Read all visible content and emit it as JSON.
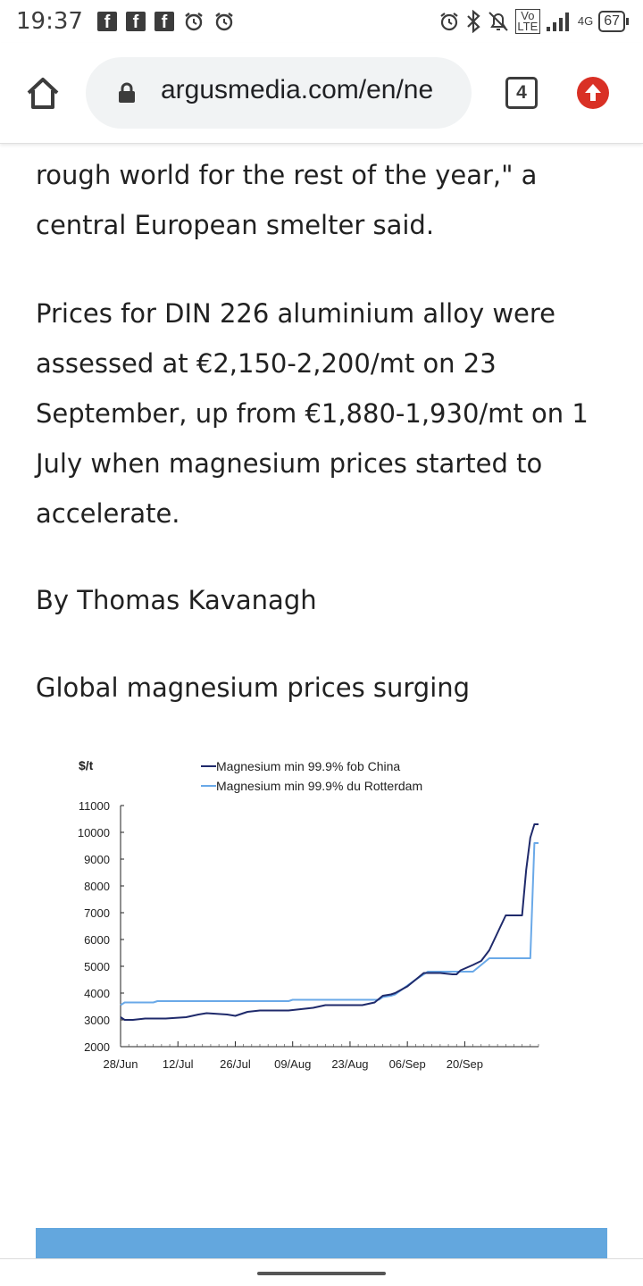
{
  "status_bar": {
    "time": "19:37",
    "battery": "67",
    "network": "4G",
    "volte": "Vo LTE"
  },
  "browser": {
    "url": "argusmedia.com/en/ne",
    "tab_count": "4"
  },
  "article": {
    "para1": "rough world for the rest of the year,\" a central European smelter said.",
    "para2": "Prices for DIN 226 aluminium alloy were assessed at €2,150-2,200/mt on 23 September, up from €1,880-1,930/mt on 1 July when magnesium prices started to accelerate.",
    "byline": "By Thomas Kavanagh",
    "chart_heading": "Global magnesium prices surging"
  },
  "colors": {
    "series_china": "#1f2a6b",
    "series_rotterdam": "#6aa9e8",
    "banner": "#63a7de"
  },
  "chart_data": {
    "type": "line",
    "ylabel": "$/t",
    "ylim": [
      2000,
      11000
    ],
    "yticks": [
      "11000",
      "10000",
      "9000",
      "8000",
      "7000",
      "6000",
      "5000",
      "4000",
      "3000",
      "2000"
    ],
    "xticks": [
      "28/Jun",
      "12/Jul",
      "26/Jul",
      "09/Aug",
      "23/Aug",
      "06/Sep",
      "20/Sep"
    ],
    "legend_position": "top",
    "grid": false,
    "series": [
      {
        "name": "Magnesium min 99.9% fob China",
        "points": [
          [
            0,
            3100
          ],
          [
            1,
            3000
          ],
          [
            3,
            3000
          ],
          [
            6,
            3050
          ],
          [
            11,
            3050
          ],
          [
            16,
            3100
          ],
          [
            19,
            3200
          ],
          [
            21,
            3250
          ],
          [
            26,
            3200
          ],
          [
            28,
            3150
          ],
          [
            31,
            3300
          ],
          [
            34,
            3350
          ],
          [
            41,
            3350
          ],
          [
            44,
            3400
          ],
          [
            47,
            3450
          ],
          [
            50,
            3550
          ],
          [
            56,
            3550
          ],
          [
            59,
            3550
          ],
          [
            62,
            3650
          ],
          [
            64,
            3900
          ],
          [
            66,
            3950
          ],
          [
            67,
            4000
          ],
          [
            70,
            4250
          ],
          [
            72,
            4500
          ],
          [
            74,
            4750
          ],
          [
            78,
            4750
          ],
          [
            81,
            4700
          ],
          [
            82,
            4700
          ],
          [
            83,
            4850
          ],
          [
            86,
            5050
          ],
          [
            88,
            5200
          ],
          [
            90,
            5600
          ],
          [
            94,
            6900
          ],
          [
            98,
            6900
          ],
          [
            99,
            8600
          ],
          [
            100,
            9800
          ],
          [
            101,
            10300
          ],
          [
            102,
            10300
          ]
        ]
      },
      {
        "name": "Magnesium min 99.9% du Rotterdam",
        "points": [
          [
            0,
            3550
          ],
          [
            1,
            3650
          ],
          [
            3,
            3650
          ],
          [
            8,
            3650
          ],
          [
            9,
            3700
          ],
          [
            35,
            3700
          ],
          [
            41,
            3700
          ],
          [
            42,
            3750
          ],
          [
            63,
            3750
          ],
          [
            64,
            3850
          ],
          [
            66,
            3900
          ],
          [
            67,
            3950
          ],
          [
            72,
            4500
          ],
          [
            73,
            4600
          ],
          [
            75,
            4800
          ],
          [
            79,
            4800
          ],
          [
            81,
            4800
          ],
          [
            82,
            4800
          ],
          [
            84,
            4800
          ],
          [
            86,
            4800
          ],
          [
            88,
            5050
          ],
          [
            90,
            5300
          ],
          [
            94,
            5300
          ],
          [
            100,
            5300
          ],
          [
            101,
            9600
          ],
          [
            102,
            9600
          ]
        ],
        "x_units_note": ""
      }
    ],
    "x_range_days": [
      0,
      102
    ]
  }
}
